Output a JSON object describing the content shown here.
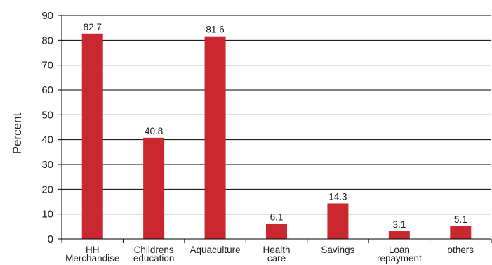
{
  "chart_data": {
    "type": "bar",
    "title": "",
    "xlabel": "",
    "ylabel": "Percent",
    "ylim": [
      0,
      90
    ],
    "yticks": [
      0,
      10,
      20,
      30,
      40,
      50,
      60,
      70,
      80,
      90
    ],
    "grid": true,
    "categories": [
      [
        "HH",
        "Merchandise"
      ],
      [
        "Childrens",
        "education"
      ],
      [
        "Aquaculture"
      ],
      [
        "Health",
        "care"
      ],
      [
        "Savings"
      ],
      [
        "Loan",
        "repayment"
      ],
      [
        "others"
      ]
    ],
    "values": [
      82.7,
      40.8,
      81.6,
      6.1,
      14.3,
      3.1,
      5.1
    ],
    "value_labels": [
      "82.7",
      "40.8",
      "81.6",
      "6.1",
      "14.3",
      "3.1",
      "5.1"
    ],
    "colors": {
      "bar": "#c8282e",
      "axis": "#000000",
      "grid": "#000000"
    }
  }
}
